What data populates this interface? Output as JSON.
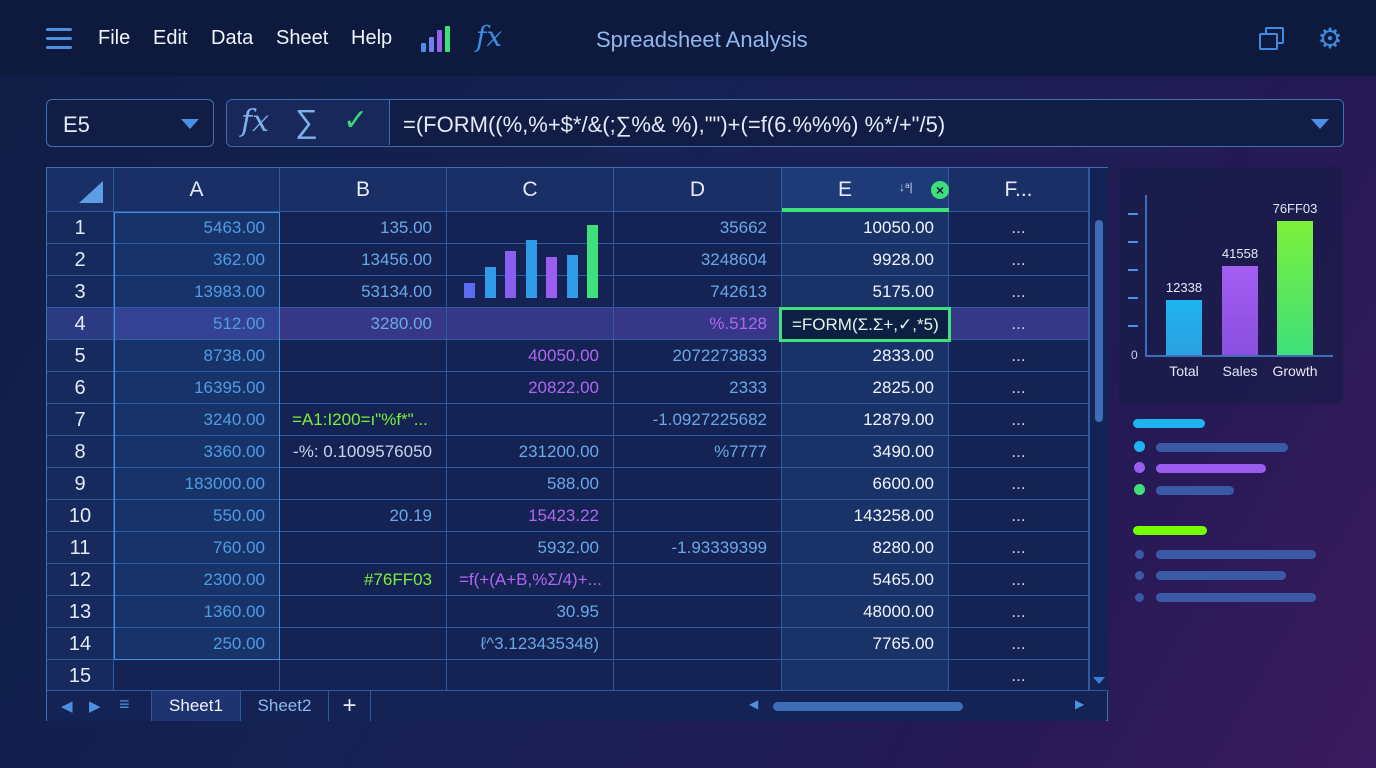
{
  "menubar": {
    "items": [
      "File",
      "Edit",
      "Data",
      "Sheet",
      "Help"
    ],
    "title": "Spreadsheet Analysis"
  },
  "formula_bar": {
    "name_box": "E5",
    "formula": "=(FORM((%,%+$*/&(;∑%& %),\"\")+(=f(6.%%%) %*/+\"/5)"
  },
  "columns": [
    "A",
    "B",
    "C",
    "D",
    "E",
    "F..."
  ],
  "rows": [
    {
      "num": "1",
      "A": "5463.00",
      "B": "135.00",
      "C": "",
      "D": "35662",
      "E": "10050.00",
      "F": "..."
    },
    {
      "num": "2",
      "A": "362.00",
      "B": "13456.00",
      "C": "",
      "D": "3248604",
      "E": "9928.00",
      "F": "..."
    },
    {
      "num": "3",
      "A": "13983.00",
      "B": "53134.00",
      "C": "",
      "D": "742613",
      "E": "5175.00",
      "F": "..."
    },
    {
      "num": "4",
      "A": "512.00",
      "B": "3280.00",
      "C": "",
      "D": "%.5128",
      "E": "=FORM(Σ.Σ+,✓,*5)",
      "F": "..."
    },
    {
      "num": "5",
      "A": "8738.00",
      "B": "",
      "C": "40050.00",
      "D": "2072273833",
      "E": "2833.00",
      "F": "..."
    },
    {
      "num": "6",
      "A": "16395.00",
      "B": "",
      "C": "20822.00",
      "D": "2333",
      "E": "2825.00",
      "F": "..."
    },
    {
      "num": "7",
      "A": "3240.00",
      "B": "=A1:I200=ı\"%f*\"...",
      "C": "",
      "D": "-1.0927225682",
      "E": "12879.00",
      "F": "..."
    },
    {
      "num": "8",
      "A": "3360.00",
      "B": "-%: 0.1009576050",
      "C": "231200.00",
      "D": "%7777",
      "E": "3490.00",
      "F": "..."
    },
    {
      "num": "9",
      "A": "183000.00",
      "B": "",
      "C": "588.00",
      "D": "",
      "E": "6600.00",
      "F": "..."
    },
    {
      "num": "10",
      "A": "550.00",
      "B": "20.19",
      "C": "15423.22",
      "D": "",
      "E": "143258.00",
      "F": "..."
    },
    {
      "num": "11",
      "A": "760.00",
      "B": "",
      "C": "5932.00",
      "D": "-1.93339399",
      "E": "8280.00",
      "F": "..."
    },
    {
      "num": "12",
      "A": "2300.00",
      "B": "#76FF03",
      "C": "=f(+(A+B,%Σ/4)+...",
      "D": "",
      "E": "5465.00",
      "F": "..."
    },
    {
      "num": "13",
      "A": "1360.00",
      "B": "",
      "C": "30.95",
      "D": "",
      "E": "48000.00",
      "F": "..."
    },
    {
      "num": "14",
      "A": "250.00",
      "B": "",
      "C": "ℓ^3.123435348)",
      "D": "",
      "E": "7765.00",
      "F": "..."
    },
    {
      "num": "15",
      "A": "",
      "B": "",
      "C": "",
      "D": "",
      "E": "",
      "F": "..."
    }
  ],
  "sheet_tabs": [
    "Sheet1",
    "Sheet2"
  ],
  "add_sheet": "+",
  "colors": {
    "accent_blue": "#3d8ce0",
    "accent_green": "#3ee07a",
    "accent_purple": "#9b5cf0",
    "lime": "#76FF03",
    "cyan": "#1fb4f0"
  },
  "side_chart": {
    "type": "bar",
    "categories": [
      "Total",
      "Sales",
      "Growth"
    ],
    "value_labels": [
      "12338",
      "41558",
      "76FF03"
    ],
    "relative_heights": [
      0.35,
      0.57,
      0.86
    ],
    "axis_zero": "0"
  },
  "mini_chart": {
    "type": "bar",
    "relative_heights": [
      0.18,
      0.36,
      0.55,
      0.68,
      0.48,
      0.5,
      0.85
    ]
  }
}
